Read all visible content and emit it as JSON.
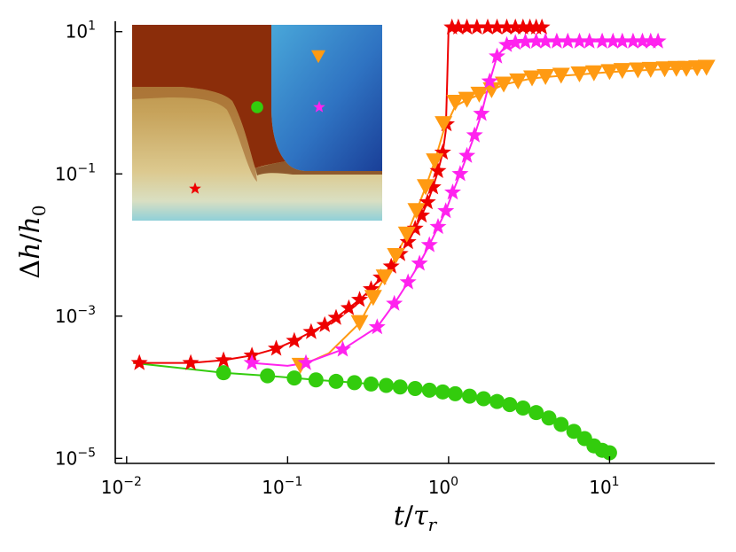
{
  "chart_data": {
    "type": "scatter",
    "xscale": "log",
    "yscale": "log",
    "xlabel": "t/τ_r",
    "ylabel": "Δh/h_0",
    "xlim": [
      0.0085,
      45
    ],
    "ylim": [
      8.5e-06,
      14
    ],
    "x_ticks": [
      {
        "value": 0.01,
        "base": "10",
        "exp": "−2"
      },
      {
        "value": 0.1,
        "base": "10",
        "exp": "−1"
      },
      {
        "value": 1,
        "base": "10",
        "exp": "0"
      },
      {
        "value": 10,
        "base": "10",
        "exp": "1"
      }
    ],
    "y_ticks": [
      {
        "value": 1e-05,
        "base": "10",
        "exp": "−5"
      },
      {
        "value": 0.001,
        "base": "10",
        "exp": "−3"
      },
      {
        "value": 0.1,
        "base": "10",
        "exp": "−1"
      },
      {
        "value": 10,
        "base": "10",
        "exp": "1"
      }
    ],
    "legend": "none",
    "grid": false,
    "series": [
      {
        "marker": "circle",
        "color": "#33cc0d",
        "x": [
          0.04,
          0.075,
          0.11,
          0.15,
          0.2,
          0.26,
          0.33,
          0.41,
          0.5,
          0.62,
          0.76,
          0.92,
          1.1,
          1.35,
          1.65,
          2.0,
          2.4,
          2.9,
          3.5,
          4.2,
          5.0,
          6.0,
          7.0,
          8.0,
          9.0,
          10.0
        ],
        "y": [
          0.00016,
          0.000145,
          0.000135,
          0.000127,
          0.000121,
          0.000116,
          0.000111,
          0.000106,
          0.000101,
          9.6e-05,
          9.1e-05,
          8.6e-05,
          8.1e-05,
          7.5e-05,
          6.9e-05,
          6.3e-05,
          5.7e-05,
          5.1e-05,
          4.4e-05,
          3.7e-05,
          3e-05,
          2.4e-05,
          1.9e-05,
          1.5e-05,
          1.3e-05,
          1.2e-05
        ],
        "curve_x": [
          0.011,
          0.02,
          0.04,
          0.075,
          0.11,
          0.15,
          0.2,
          0.26,
          0.33,
          0.41,
          0.5,
          0.62,
          0.76,
          0.92,
          1.1,
          1.35,
          1.65,
          2.0,
          2.4,
          2.9,
          3.5,
          4.2,
          5.0,
          6.0,
          7.0,
          8.0,
          9.0,
          10.0
        ],
        "curve_y": [
          0.00022,
          0.00019,
          0.00016,
          0.000145,
          0.000135,
          0.000127,
          0.000121,
          0.000116,
          0.000111,
          0.000106,
          0.000101,
          9.6e-05,
          9.1e-05,
          8.6e-05,
          8.1e-05,
          7.5e-05,
          6.9e-05,
          6.3e-05,
          5.7e-05,
          5.1e-05,
          4.4e-05,
          3.7e-05,
          3e-05,
          2.4e-05,
          1.9e-05,
          1.5e-05,
          1.3e-05,
          1.2e-05
        ]
      },
      {
        "marker": "star",
        "color": "#ee0000",
        "x": [
          0.012,
          0.025,
          0.04,
          0.06,
          0.085,
          0.11,
          0.14,
          0.17,
          0.2,
          0.24,
          0.28,
          0.33,
          0.38,
          0.44,
          0.5,
          0.56,
          0.62,
          0.68,
          0.74,
          0.8,
          0.86,
          0.92,
          0.97,
          1.05,
          1.15,
          1.3,
          1.5,
          1.75,
          2.0,
          2.3,
          2.6,
          2.9,
          3.2,
          3.5,
          3.8
        ],
        "y": [
          0.00022,
          0.00022,
          0.00024,
          0.00028,
          0.00035,
          0.00045,
          0.0006,
          0.00075,
          0.00095,
          0.0013,
          0.0017,
          0.0024,
          0.0035,
          0.005,
          0.0075,
          0.011,
          0.017,
          0.026,
          0.04,
          0.065,
          0.11,
          0.2,
          0.5,
          11.5,
          11.5,
          11.5,
          11.5,
          11.5,
          11.5,
          11.5,
          11.5,
          11.5,
          11.5,
          11.5,
          11.5
        ],
        "curve_x": [
          0.011,
          0.025,
          0.04,
          0.06,
          0.085,
          0.11,
          0.14,
          0.17,
          0.2,
          0.24,
          0.28,
          0.33,
          0.38,
          0.44,
          0.5,
          0.56,
          0.62,
          0.68,
          0.74,
          0.8,
          0.86,
          0.92,
          0.96,
          0.98,
          1.0,
          1.1,
          1.5,
          2.0,
          3.0,
          3.8
        ],
        "curve_y": [
          0.00022,
          0.00022,
          0.00024,
          0.00028,
          0.00035,
          0.00045,
          0.0006,
          0.00075,
          0.00095,
          0.0013,
          0.0017,
          0.0024,
          0.0035,
          0.005,
          0.0075,
          0.011,
          0.017,
          0.026,
          0.04,
          0.065,
          0.11,
          0.2,
          0.4,
          2.0,
          11.5,
          11.5,
          11.5,
          11.5,
          11.5,
          11.5
        ]
      },
      {
        "marker": "triangle-down",
        "color": "#ff9a12",
        "x": [
          0.12,
          0.28,
          0.34,
          0.4,
          0.47,
          0.55,
          0.63,
          0.72,
          0.82,
          0.93,
          1.1,
          1.3,
          1.55,
          1.85,
          2.2,
          2.7,
          3.3,
          4.0,
          5.0,
          6.5,
          8.0,
          10.0,
          12.0,
          15.0,
          18.0,
          22.0,
          26.0,
          30.0,
          35.0,
          40.0
        ],
        "y": [
          0.0002,
          0.0008,
          0.0018,
          0.0035,
          0.007,
          0.014,
          0.03,
          0.065,
          0.15,
          0.5,
          1.0,
          1.1,
          1.3,
          1.5,
          1.8,
          2.0,
          2.2,
          2.3,
          2.4,
          2.5,
          2.6,
          2.7,
          2.8,
          2.85,
          2.9,
          2.95,
          3.0,
          3.0,
          3.05,
          3.1
        ],
        "curve_x": [
          0.12,
          0.18,
          0.28,
          0.34,
          0.4,
          0.47,
          0.55,
          0.63,
          0.72,
          0.82,
          0.93,
          1.1,
          1.3,
          1.55,
          1.85,
          2.2,
          2.7,
          3.3,
          4.0,
          5.0,
          6.5,
          8.0,
          10.0,
          15.0,
          22.0,
          30.0,
          40.0
        ],
        "curve_y": [
          0.0002,
          0.0003,
          0.0008,
          0.0018,
          0.0035,
          0.007,
          0.014,
          0.03,
          0.065,
          0.15,
          0.4,
          0.9,
          1.1,
          1.3,
          1.5,
          1.8,
          2.0,
          2.2,
          2.3,
          2.4,
          2.5,
          2.6,
          2.7,
          2.85,
          2.95,
          3.0,
          3.1
        ]
      },
      {
        "marker": "star",
        "color": "#ff22ee",
        "x": [
          0.06,
          0.13,
          0.22,
          0.36,
          0.46,
          0.56,
          0.66,
          0.76,
          0.86,
          0.96,
          1.06,
          1.18,
          1.3,
          1.45,
          1.6,
          1.8,
          2.0,
          2.3,
          2.6,
          3.0,
          3.5,
          4.0,
          4.7,
          5.5,
          6.5,
          7.5,
          9.0,
          10.5,
          12.0,
          14.0,
          16.0,
          18.0,
          20.0
        ],
        "y": [
          0.00022,
          0.00022,
          0.00034,
          0.0007,
          0.0015,
          0.003,
          0.0055,
          0.01,
          0.018,
          0.03,
          0.055,
          0.1,
          0.18,
          0.35,
          0.7,
          2.0,
          4.5,
          6.5,
          7.0,
          7.2,
          7.3,
          7.3,
          7.3,
          7.3,
          7.3,
          7.3,
          7.3,
          7.3,
          7.3,
          7.3,
          7.3,
          7.3,
          7.3
        ],
        "curve_x": [
          0.06,
          0.1,
          0.13,
          0.22,
          0.36,
          0.46,
          0.56,
          0.66,
          0.76,
          0.86,
          0.96,
          1.06,
          1.18,
          1.3,
          1.45,
          1.6,
          1.8,
          2.0,
          2.3,
          2.6,
          3.0,
          4.0,
          6.0,
          10.0,
          15.0,
          20.0
        ],
        "curve_y": [
          0.00022,
          0.0002,
          0.00022,
          0.00034,
          0.0007,
          0.0015,
          0.003,
          0.0055,
          0.01,
          0.018,
          0.03,
          0.055,
          0.1,
          0.18,
          0.35,
          0.7,
          2.0,
          4.5,
          6.5,
          7.0,
          7.2,
          7.3,
          7.3,
          7.3,
          7.3,
          7.3
        ]
      }
    ],
    "inset": {
      "type": "heatmap",
      "regions": [
        {
          "color": "#8b2d0a"
        },
        {
          "color": "#b0843c"
        },
        {
          "color": "#2d71c0"
        },
        {
          "color": "#8ecfd6"
        }
      ],
      "markers": [
        {
          "marker": "triangle-down",
          "color": "#ff9a12"
        },
        {
          "marker": "circle",
          "color": "#33cc0d"
        },
        {
          "marker": "star",
          "color": "#ff22ee"
        },
        {
          "marker": "star",
          "color": "#ee0000"
        }
      ]
    }
  }
}
